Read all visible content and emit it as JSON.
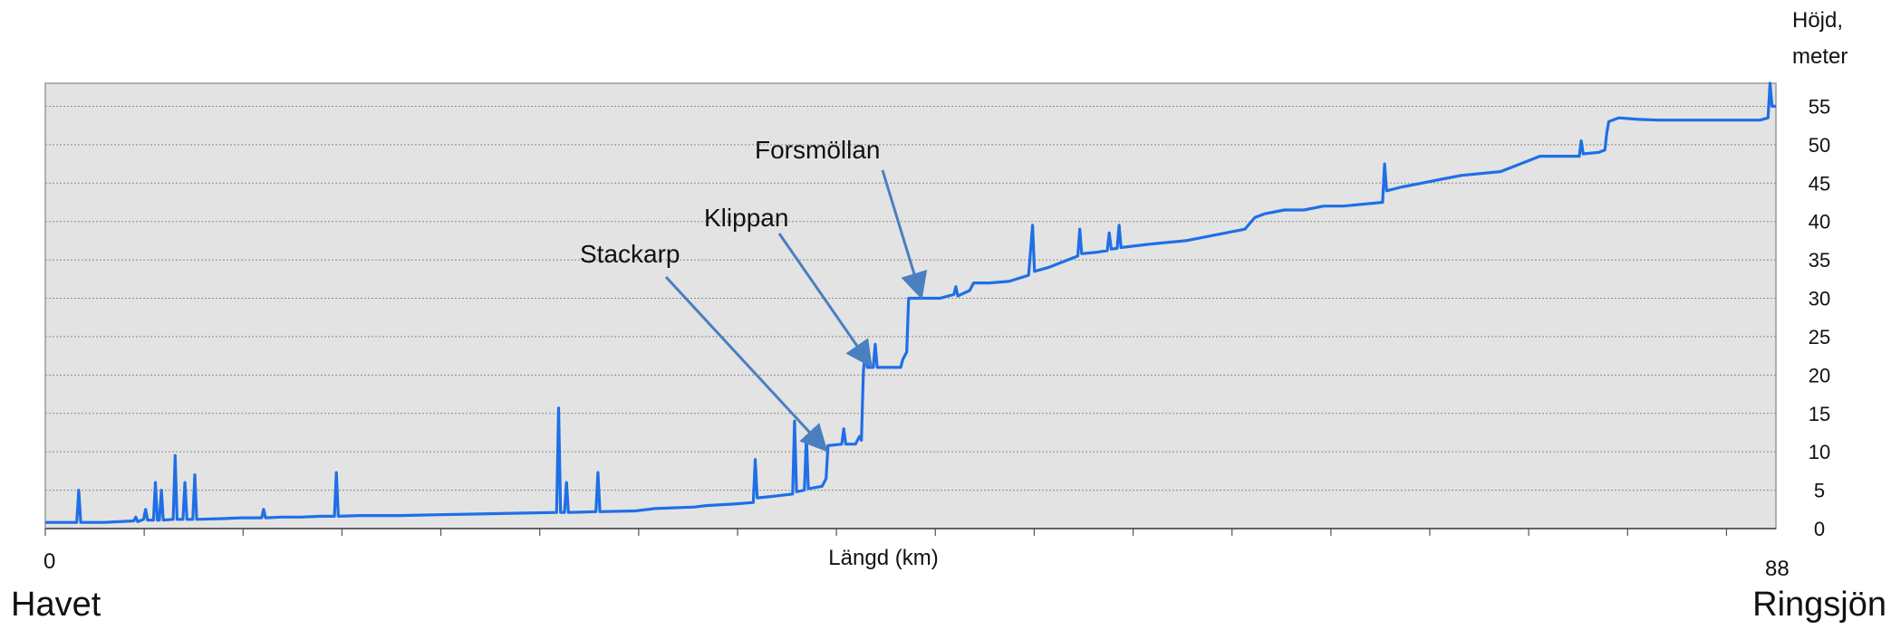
{
  "chart_data": {
    "type": "line",
    "title": "",
    "xlabel": "Längd (km)",
    "ylabel_lines": [
      "Höjd,",
      "meter"
    ],
    "xlim": [
      0,
      88
    ],
    "ylim": [
      0,
      58
    ],
    "x_tick_labels": [
      {
        "x": 0,
        "label": "0"
      },
      {
        "x": 88,
        "label": "88"
      }
    ],
    "y_ticks": [
      0,
      5,
      10,
      15,
      20,
      25,
      30,
      35,
      40,
      45,
      50,
      55
    ],
    "grid": true,
    "plot_background": "#e3e3e3",
    "line_color": "#1f6fe6",
    "arrow_color": "#4a7fc0",
    "start_label": "Havet",
    "end_label": "Ringsjön",
    "annotations": [
      {
        "label": "Stackarp",
        "x": 39.6,
        "y": 10.5
      },
      {
        "label": "Klippan",
        "x": 41.9,
        "y": 21.5
      },
      {
        "label": "Forsmöllan",
        "x": 44.5,
        "y": 30.5
      }
    ],
    "series": [
      {
        "values": [
          [
            0,
            0.8
          ],
          [
            1.6,
            0.8
          ],
          [
            1.7,
            5
          ],
          [
            1.8,
            0.8
          ],
          [
            3,
            0.8
          ],
          [
            4.5,
            1
          ],
          [
            4.6,
            1.5
          ],
          [
            4.7,
            0.9
          ],
          [
            5,
            1.2
          ],
          [
            5.1,
            2.5
          ],
          [
            5.2,
            1.1
          ],
          [
            5.5,
            1.1
          ],
          [
            5.6,
            6
          ],
          [
            5.7,
            1.1
          ],
          [
            5.8,
            1.1
          ],
          [
            5.9,
            5
          ],
          [
            6,
            1.1
          ],
          [
            6.5,
            1.2
          ],
          [
            6.6,
            9.5
          ],
          [
            6.7,
            1.2
          ],
          [
            7,
            1.2
          ],
          [
            7.1,
            6
          ],
          [
            7.2,
            1.2
          ],
          [
            7.5,
            1.2
          ],
          [
            7.6,
            7
          ],
          [
            7.7,
            1.2
          ],
          [
            9,
            1.3
          ],
          [
            10,
            1.4
          ],
          [
            11,
            1.4
          ],
          [
            11.1,
            2.5
          ],
          [
            11.2,
            1.4
          ],
          [
            12,
            1.5
          ],
          [
            13,
            1.5
          ],
          [
            14,
            1.6
          ],
          [
            14.7,
            1.6
          ],
          [
            14.8,
            7.3
          ],
          [
            14.9,
            1.6
          ],
          [
            16,
            1.7
          ],
          [
            18,
            1.7
          ],
          [
            20,
            1.8
          ],
          [
            22,
            1.9
          ],
          [
            24,
            2
          ],
          [
            26,
            2.1
          ],
          [
            26.1,
            15.7
          ],
          [
            26.2,
            2.1
          ],
          [
            26.4,
            2.1
          ],
          [
            26.5,
            6
          ],
          [
            26.6,
            2.1
          ],
          [
            28,
            2.2
          ],
          [
            28.1,
            7.3
          ],
          [
            28.2,
            2.2
          ],
          [
            30,
            2.3
          ],
          [
            31,
            2.6
          ],
          [
            33,
            2.8
          ],
          [
            33.6,
            3
          ],
          [
            35,
            3.2
          ],
          [
            36,
            3.4
          ],
          [
            36.1,
            9
          ],
          [
            36.2,
            4
          ],
          [
            37,
            4.2
          ],
          [
            38,
            4.5
          ],
          [
            38.1,
            14
          ],
          [
            38.2,
            4.8
          ],
          [
            38.6,
            5
          ],
          [
            38.7,
            12
          ],
          [
            38.8,
            5.2
          ],
          [
            39.5,
            5.5
          ],
          [
            39.7,
            6.5
          ],
          [
            39.8,
            10.8
          ],
          [
            40.5,
            11
          ],
          [
            40.6,
            13
          ],
          [
            40.7,
            11
          ],
          [
            41.2,
            11
          ],
          [
            41.4,
            12
          ],
          [
            41.5,
            11.5
          ],
          [
            41.6,
            20.5
          ],
          [
            41.7,
            23
          ],
          [
            41.8,
            21
          ],
          [
            42.1,
            21
          ],
          [
            42.2,
            24
          ],
          [
            42.3,
            21
          ],
          [
            43.5,
            21
          ],
          [
            43.6,
            22
          ],
          [
            43.8,
            23
          ],
          [
            43.9,
            30
          ],
          [
            44.8,
            30
          ],
          [
            45.5,
            30
          ],
          [
            46.2,
            30.5
          ],
          [
            46.3,
            31.5
          ],
          [
            46.4,
            30.3
          ],
          [
            47,
            31
          ],
          [
            47.2,
            32
          ],
          [
            48,
            32
          ],
          [
            49,
            32.2
          ],
          [
            50,
            33
          ],
          [
            50.2,
            39.5
          ],
          [
            50.3,
            33.5
          ],
          [
            51,
            34
          ],
          [
            52,
            35
          ],
          [
            52.5,
            35.5
          ],
          [
            52.6,
            39
          ],
          [
            52.7,
            35.8
          ],
          [
            53.5,
            36
          ],
          [
            54,
            36.2
          ],
          [
            54.1,
            38.5
          ],
          [
            54.2,
            36.4
          ],
          [
            54.5,
            36.5
          ],
          [
            54.6,
            39.5
          ],
          [
            54.7,
            36.6
          ],
          [
            56,
            37
          ],
          [
            58,
            37.5
          ],
          [
            60,
            38.5
          ],
          [
            61,
            39
          ],
          [
            61.5,
            40.5
          ],
          [
            62,
            41
          ],
          [
            63,
            41.5
          ],
          [
            64,
            41.5
          ],
          [
            65,
            42
          ],
          [
            66,
            42
          ],
          [
            68,
            42.5
          ],
          [
            68.1,
            47.5
          ],
          [
            68.2,
            44
          ],
          [
            69,
            44.5
          ],
          [
            70,
            45
          ],
          [
            71,
            45.5
          ],
          [
            72,
            46
          ],
          [
            74,
            46.5
          ],
          [
            75,
            47.5
          ],
          [
            76,
            48.5
          ],
          [
            78,
            48.5
          ],
          [
            78.1,
            50.5
          ],
          [
            78.2,
            48.8
          ],
          [
            79,
            49
          ],
          [
            79.3,
            49.3
          ],
          [
            79.4,
            51.5
          ],
          [
            79.5,
            53
          ],
          [
            80,
            53.5
          ],
          [
            81,
            53.3
          ],
          [
            82,
            53.2
          ],
          [
            84,
            53.2
          ],
          [
            86,
            53.2
          ],
          [
            87.2,
            53.2
          ],
          [
            87.6,
            53.5
          ],
          [
            87.7,
            58
          ],
          [
            87.8,
            55
          ],
          [
            88,
            55
          ]
        ]
      }
    ]
  }
}
